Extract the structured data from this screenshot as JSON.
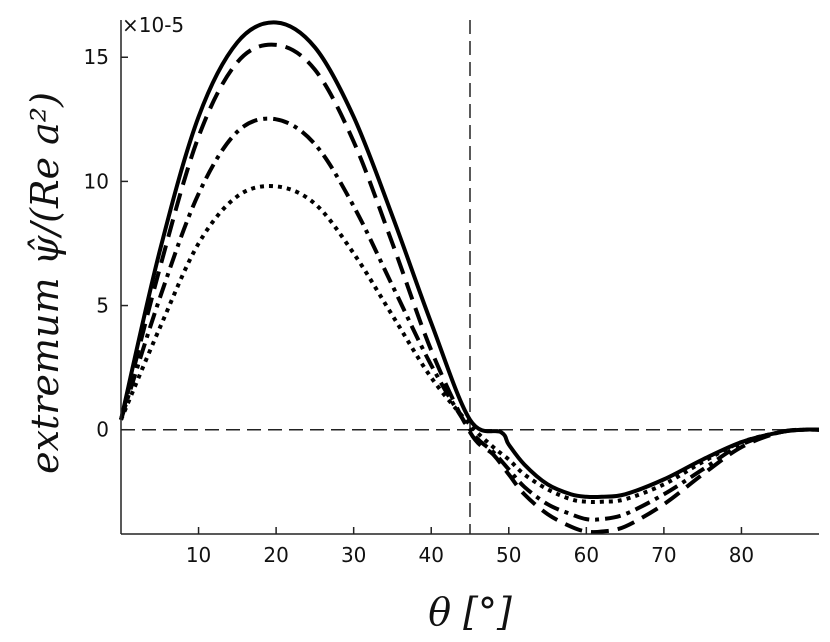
{
  "chart_data": {
    "type": "line",
    "xlabel": "θ [°]",
    "ylabel": "extremum ψ̂/(Re a²)",
    "y_multiplier_label": "×10-5",
    "xlim": [
      0,
      90
    ],
    "ylim": [
      -4.2,
      16.5
    ],
    "x_ticks": [
      10,
      20,
      30,
      40,
      50,
      60,
      70,
      80
    ],
    "y_ticks": [
      0,
      5,
      10,
      15
    ],
    "grid": false,
    "legend": "none",
    "reference_lines": [
      {
        "orientation": "vertical",
        "value": 45,
        "style": "dash"
      },
      {
        "orientation": "horizontal",
        "value": 0,
        "style": "dash"
      }
    ],
    "series": [
      {
        "style": "solid",
        "x": [
          0,
          5,
          10,
          15,
          20,
          25,
          30,
          35,
          40,
          45,
          49,
          50,
          52,
          55,
          58,
          60,
          62,
          65,
          70,
          75,
          80,
          85,
          88,
          90
        ],
        "values": [
          0.4,
          7.2,
          12.6,
          15.6,
          16.4,
          15.4,
          12.6,
          8.6,
          4.3,
          0.4,
          -0.1,
          -0.6,
          -1.4,
          -2.2,
          -2.6,
          -2.7,
          -2.7,
          -2.6,
          -2.0,
          -1.2,
          -0.5,
          -0.1,
          0.0,
          0.0
        ]
      },
      {
        "style": "dash",
        "x": [
          0,
          5,
          10,
          15,
          20,
          25,
          30,
          35,
          40,
          45,
          48,
          50,
          52,
          55,
          58,
          60,
          62,
          65,
          70,
          75,
          80,
          85,
          88,
          90
        ],
        "values": [
          0.4,
          6.5,
          11.8,
          14.8,
          15.5,
          14.5,
          11.6,
          7.5,
          3.2,
          -0.1,
          -1.0,
          -1.8,
          -2.6,
          -3.4,
          -3.9,
          -4.1,
          -4.1,
          -3.9,
          -3.0,
          -1.8,
          -0.7,
          -0.1,
          0.0,
          0.0
        ]
      },
      {
        "style": "dashdot",
        "x": [
          0,
          5,
          10,
          15,
          20,
          25,
          30,
          35,
          40,
          45,
          48,
          50,
          52,
          55,
          58,
          60,
          62,
          65,
          70,
          75,
          80,
          85,
          88,
          90
        ],
        "values": [
          0.4,
          5.3,
          9.5,
          12.0,
          12.5,
          11.5,
          9.0,
          5.8,
          2.6,
          0.0,
          -0.9,
          -1.6,
          -2.3,
          -3.0,
          -3.4,
          -3.6,
          -3.6,
          -3.4,
          -2.6,
          -1.6,
          -0.6,
          -0.1,
          0.0,
          0.0
        ]
      },
      {
        "style": "dot",
        "x": [
          0,
          5,
          10,
          15,
          20,
          25,
          30,
          35,
          40,
          45,
          48,
          50,
          52,
          55,
          58,
          60,
          62,
          65,
          70,
          75,
          80,
          85,
          88,
          90
        ],
        "values": [
          0.4,
          4.1,
          7.5,
          9.4,
          9.8,
          9.1,
          7.1,
          4.6,
          2.1,
          0.2,
          -0.7,
          -1.2,
          -1.8,
          -2.4,
          -2.8,
          -2.9,
          -2.9,
          -2.8,
          -2.2,
          -1.3,
          -0.5,
          -0.1,
          0.0,
          0.0
        ]
      }
    ]
  }
}
